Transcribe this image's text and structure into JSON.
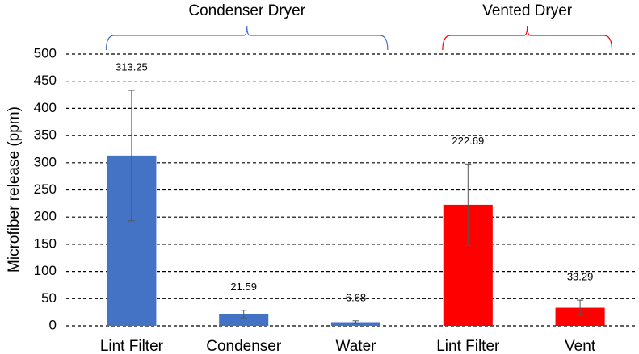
{
  "chart_data": {
    "type": "bar",
    "ylabel": "Microfiber release (ppm)",
    "categories": [
      "Lint Filter",
      "Condenser",
      "Water",
      "Lint Filter",
      "Vent"
    ],
    "values": [
      313.25,
      21.59,
      6.68,
      222.69,
      33.29
    ],
    "errors": [
      120,
      7,
      2.5,
      75,
      14
    ],
    "colors": [
      "#4472c4",
      "#4472c4",
      "#4472c4",
      "#ff0000",
      "#ff0000"
    ],
    "groups": [
      {
        "label": "Condenser Dryer",
        "color": "#4472c4",
        "count": 3
      },
      {
        "label": "Vented Dryer",
        "color": "#ff0000",
        "count": 2
      }
    ],
    "ylim": [
      0,
      500
    ],
    "yticks": [
      0,
      50,
      100,
      150,
      200,
      250,
      300,
      350,
      400,
      450,
      500
    ],
    "grid": true
  }
}
